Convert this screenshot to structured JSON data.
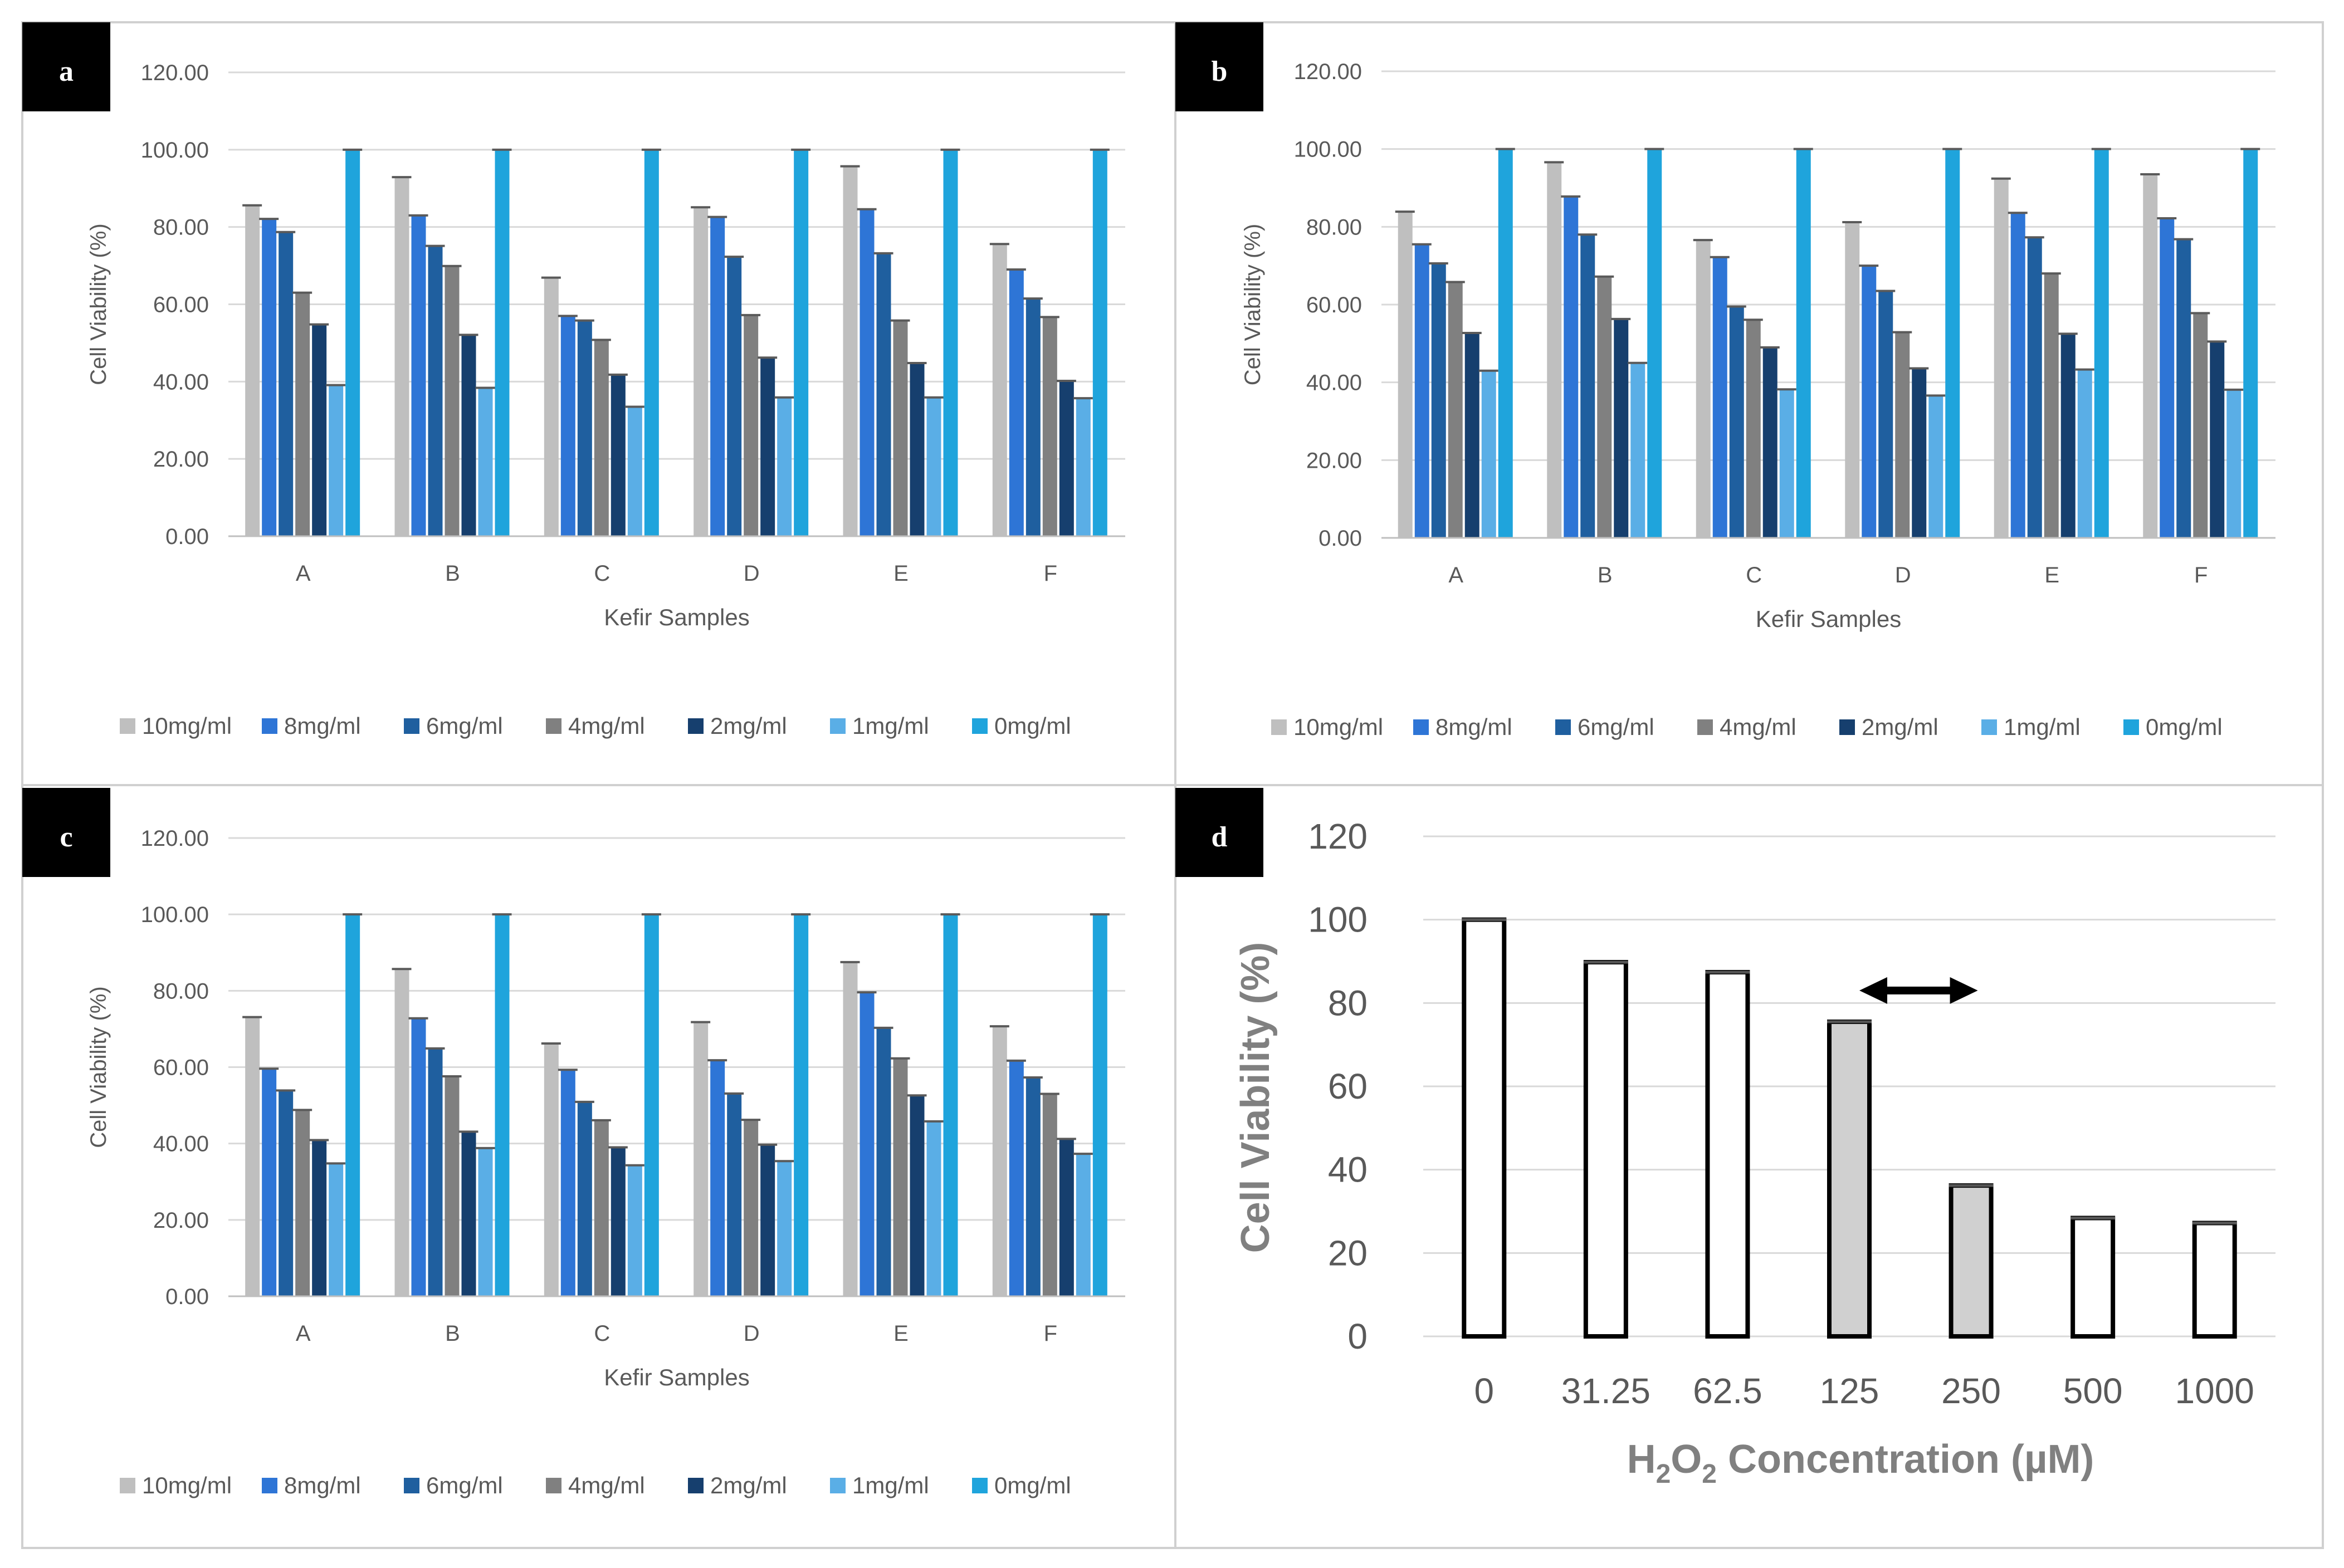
{
  "figure": {
    "panels": [
      "a",
      "b",
      "c",
      "d"
    ]
  },
  "colors": {
    "10mg/ml": "#bfbfbf",
    "8mg/ml": "#2e75d6",
    "6mg/ml": "#1f5f9f",
    "4mg/ml": "#808080",
    "2mg/ml": "#163f6e",
    "1mg/ml": "#5aaee6",
    "0mg/ml": "#1fa4dc",
    "grid": "#d9d9d9",
    "frame": "#d0d0d0",
    "d_white_bar": "#ffffff",
    "d_grey_bar": "#d0d0d0",
    "d_bar_stroke": "#000000",
    "arrow": "#000000"
  },
  "chart_data": [
    {
      "panel": "a",
      "type": "bar",
      "xlabel": "Kefir Samples",
      "ylabel": "Cell Viability (%)",
      "ylim": [
        0,
        120
      ],
      "yticks": [
        "0.00",
        "20.00",
        "40.00",
        "60.00",
        "80.00",
        "100.00",
        "120.00"
      ],
      "categories": [
        "A",
        "B",
        "C",
        "D",
        "E",
        "F"
      ],
      "legend": [
        "10mg/ml",
        "8mg/ml",
        "6mg/ml",
        "4mg/ml",
        "2mg/ml",
        "1mg/ml",
        "0mg/ml"
      ],
      "series": [
        {
          "name": "10mg/ml",
          "values": [
            85.6,
            92.9,
            66.9,
            85.1,
            95.7,
            75.6
          ]
        },
        {
          "name": "8mg/ml",
          "values": [
            82.1,
            83.0,
            57.0,
            82.6,
            84.6,
            69.0
          ]
        },
        {
          "name": "6mg/ml",
          "values": [
            78.7,
            75.1,
            55.8,
            72.3,
            73.2,
            61.5
          ]
        },
        {
          "name": "4mg/ml",
          "values": [
            63.0,
            69.9,
            50.8,
            57.2,
            55.8,
            56.7
          ]
        },
        {
          "name": "2mg/ml",
          "values": [
            54.8,
            52.1,
            41.8,
            46.2,
            44.8,
            40.2
          ]
        },
        {
          "name": "1mg/ml",
          "values": [
            39.1,
            38.4,
            33.5,
            35.9,
            35.9,
            35.7
          ]
        },
        {
          "name": "0mg/ml",
          "values": [
            100,
            100,
            100,
            100,
            100,
            100
          ]
        }
      ]
    },
    {
      "panel": "b",
      "type": "bar",
      "xlabel": "Kefir Samples",
      "ylabel": "Cell Viability (%)",
      "ylim": [
        0,
        120
      ],
      "yticks": [
        "0.00",
        "20.00",
        "40.00",
        "60.00",
        "80.00",
        "100.00",
        "120.00"
      ],
      "categories": [
        "A",
        "B",
        "C",
        "D",
        "E",
        "F"
      ],
      "legend": [
        "10mg/ml",
        "8mg/ml",
        "6mg/ml",
        "4mg/ml",
        "2mg/ml",
        "1mg/ml",
        "0mg/ml"
      ],
      "series": [
        {
          "name": "10mg/ml",
          "values": [
            83.9,
            96.6,
            76.6,
            81.2,
            92.4,
            93.5
          ]
        },
        {
          "name": "8mg/ml",
          "values": [
            75.5,
            87.8,
            72.2,
            70.0,
            83.6,
            82.2
          ]
        },
        {
          "name": "6mg/ml",
          "values": [
            70.6,
            78.0,
            59.5,
            63.5,
            77.3,
            76.8
          ]
        },
        {
          "name": "4mg/ml",
          "values": [
            65.8,
            67.2,
            56.1,
            52.9,
            68.0,
            57.8
          ]
        },
        {
          "name": "2mg/ml",
          "values": [
            52.7,
            56.3,
            49.0,
            43.6,
            52.5,
            50.5
          ]
        },
        {
          "name": "1mg/ml",
          "values": [
            43.0,
            45.0,
            38.2,
            36.6,
            43.3,
            38.1
          ]
        },
        {
          "name": "0mg/ml",
          "values": [
            100,
            100,
            100,
            100,
            100,
            100
          ]
        }
      ]
    },
    {
      "panel": "c",
      "type": "bar",
      "xlabel": "Kefir Samples",
      "ylabel": "Cell Viability (%)",
      "ylim": [
        0,
        120
      ],
      "yticks": [
        "0.00",
        "20.00",
        "40.00",
        "60.00",
        "80.00",
        "100.00",
        "120.00"
      ],
      "categories": [
        "A",
        "B",
        "C",
        "D",
        "E",
        "F"
      ],
      "legend": [
        "10mg/ml",
        "8mg/ml",
        "6mg/ml",
        "4mg/ml",
        "2mg/ml",
        "1mg/ml",
        "0mg/ml"
      ],
      "series": [
        {
          "name": "10mg/ml",
          "values": [
            73.1,
            85.7,
            66.2,
            71.8,
            87.5,
            70.7
          ]
        },
        {
          "name": "8mg/ml",
          "values": [
            59.6,
            72.8,
            59.3,
            61.8,
            79.6,
            61.7
          ]
        },
        {
          "name": "6mg/ml",
          "values": [
            53.9,
            64.9,
            50.9,
            53.1,
            70.3,
            57.3
          ]
        },
        {
          "name": "4mg/ml",
          "values": [
            48.8,
            57.6,
            46.1,
            46.2,
            62.3,
            53.0
          ]
        },
        {
          "name": "2mg/ml",
          "values": [
            40.9,
            43.1,
            39.0,
            39.7,
            52.6,
            41.2
          ]
        },
        {
          "name": "1mg/ml",
          "values": [
            34.8,
            38.8,
            34.3,
            35.4,
            45.8,
            37.3
          ]
        },
        {
          "name": "0mg/ml",
          "values": [
            100,
            100,
            100,
            100,
            100,
            100
          ]
        }
      ]
    },
    {
      "panel": "d",
      "type": "bar",
      "xlabel": "H2O2 Concentration (µM)",
      "xlabel_parts": {
        "h": "H",
        "sub1": "2",
        "o": "O",
        "sub2": "2",
        "rest": " Concentration (µM)"
      },
      "ylabel": "Cell Viability (%)",
      "ylim": [
        0,
        120
      ],
      "yticks": [
        "0",
        "20",
        "40",
        "60",
        "80",
        "100",
        "120"
      ],
      "categories": [
        "0",
        "31.25",
        "62.5",
        "125",
        "250",
        "500",
        "1000"
      ],
      "values": [
        100,
        89.8,
        87.4,
        75.5,
        36.2,
        28.4,
        27.2
      ],
      "highlighted": [
        "125",
        "250"
      ],
      "annotation": {
        "type": "double-arrow",
        "from": "125",
        "to": "250",
        "y": 83
      }
    }
  ]
}
